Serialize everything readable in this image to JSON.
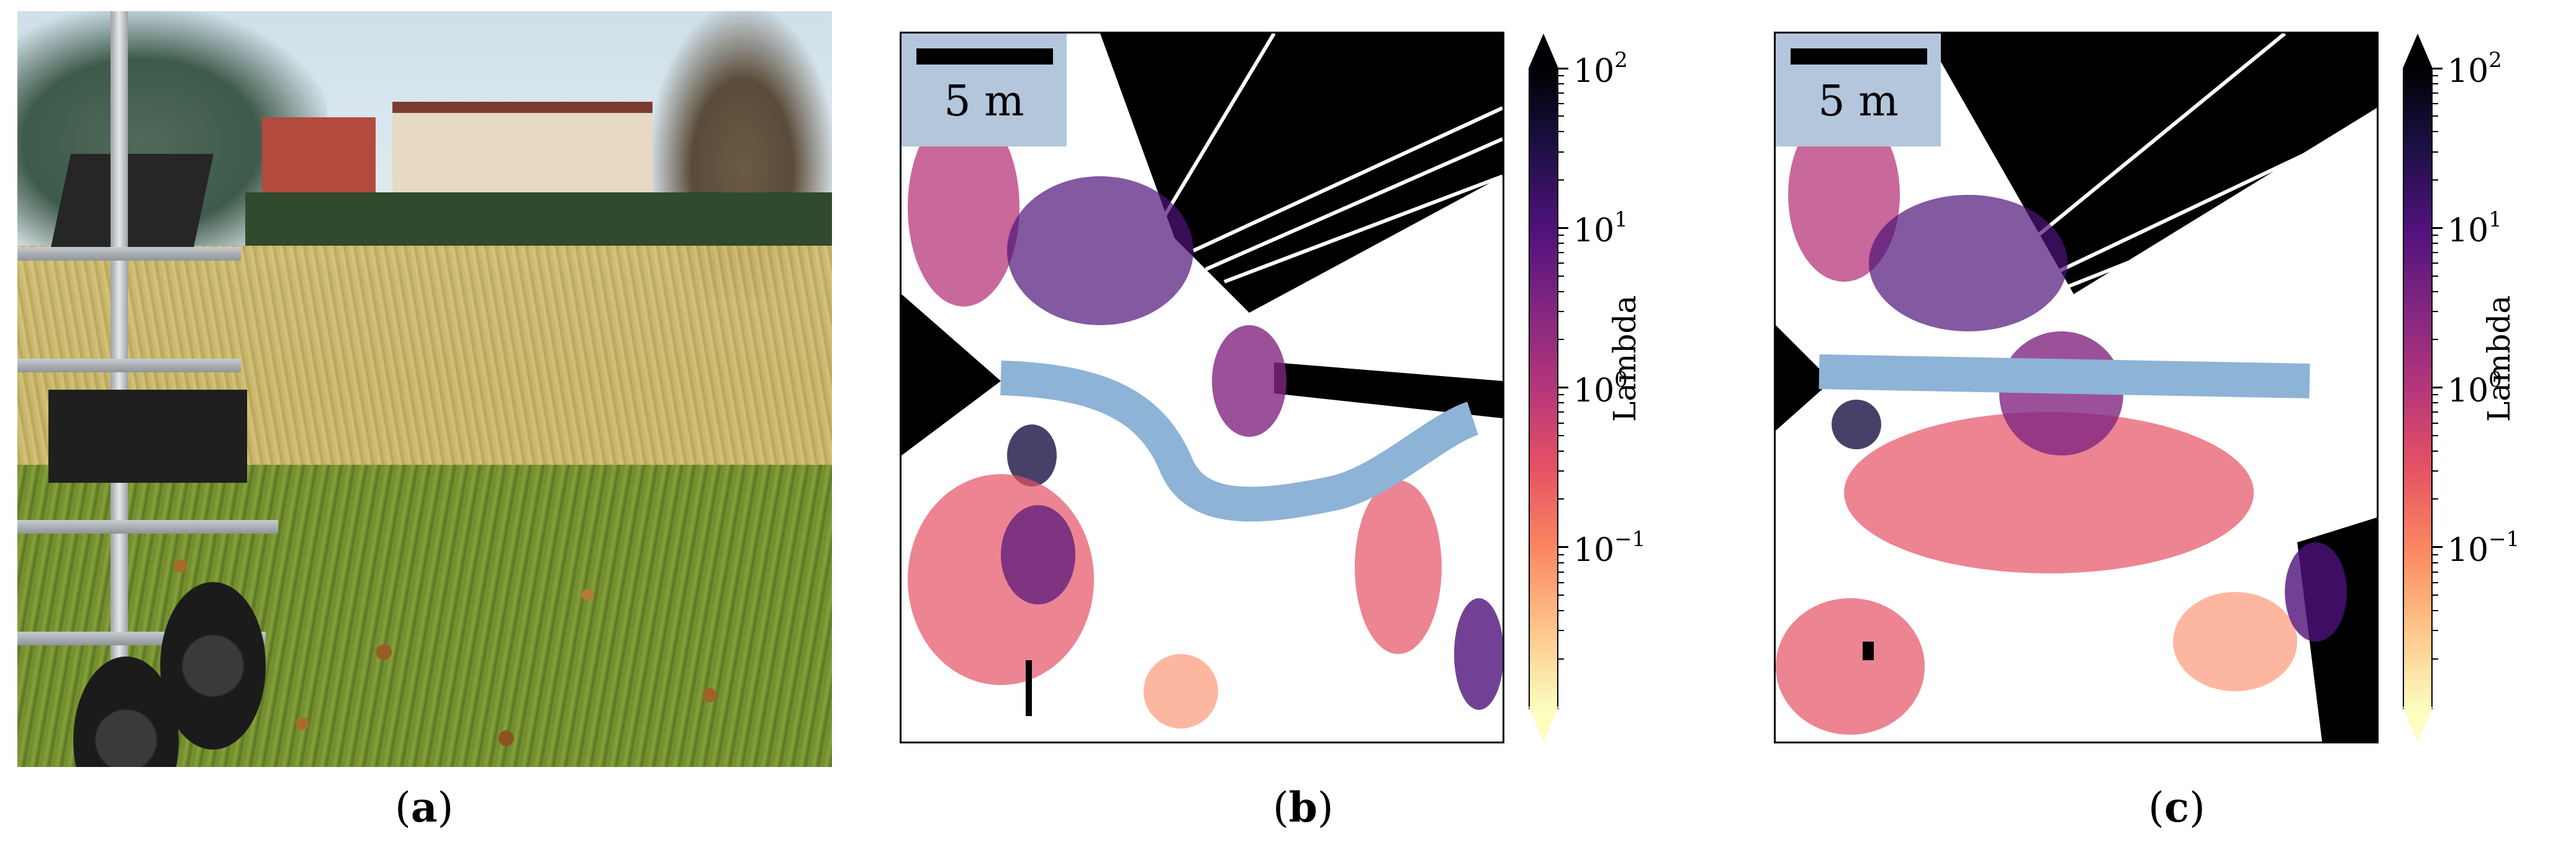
{
  "figure": {
    "panels": [
      {
        "id": "a",
        "label": "a"
      },
      {
        "id": "b",
        "label": "b",
        "scale_bar": "5 m",
        "colorbar_title": "Lambda"
      },
      {
        "id": "c",
        "label": "c",
        "scale_bar": "5 m",
        "colorbar_title": "Lambda"
      }
    ],
    "colorbar": {
      "scale": "log",
      "colormap": "magma_r",
      "range": [
        0.01,
        100
      ],
      "extend": "both",
      "ticks": [
        {
          "value": 100,
          "base": "10",
          "exp": "2"
        },
        {
          "value": 10,
          "base": "10",
          "exp": "1"
        },
        {
          "value": 1,
          "base": "10",
          "exp": "0"
        },
        {
          "value": 0.1,
          "base": "10",
          "exp": "−1"
        }
      ]
    },
    "colors": {
      "path": "#8db3d6",
      "scale_box": "#b3c6db",
      "unknown": "#000000",
      "free": "#ffffff"
    }
  }
}
